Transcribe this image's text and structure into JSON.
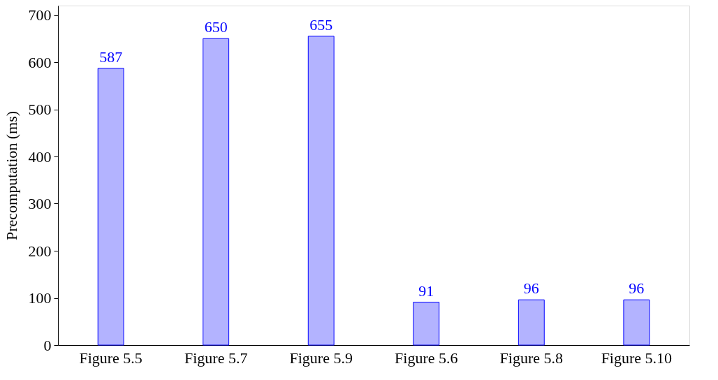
{
  "chart_data": {
    "type": "bar",
    "categories": [
      "Figure 5.5",
      "Figure 5.7",
      "Figure 5.9",
      "Figure 5.6",
      "Figure 5.8",
      "Figure 5.10"
    ],
    "values": [
      587,
      650,
      655,
      91,
      96,
      96
    ],
    "color": "#b3b3ff",
    "ylabel": "Precomputation (ms)",
    "ylim": [
      0,
      720
    ],
    "yticks": [
      0,
      100,
      200,
      300,
      400,
      500,
      600,
      700
    ],
    "grid": false,
    "data_labels": true
  }
}
